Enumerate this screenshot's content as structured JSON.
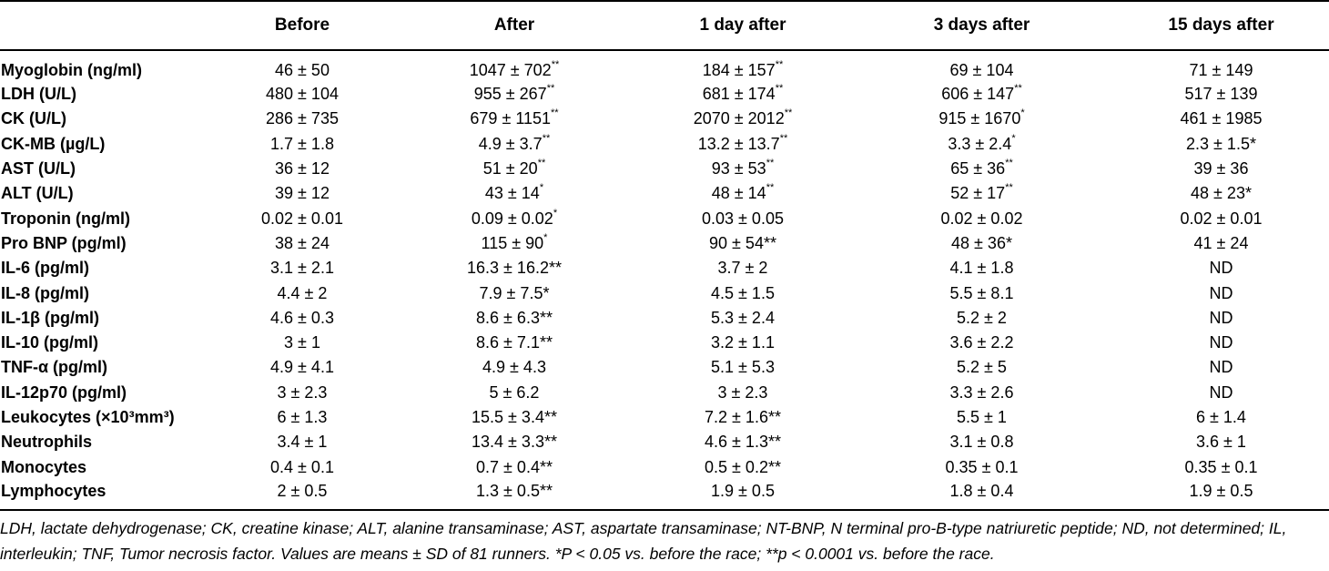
{
  "table": {
    "headers": [
      "",
      "Before",
      "After",
      "1 day after",
      "3 days after",
      "15 days after"
    ],
    "rows": [
      {
        "label": "Myoglobin (ng/ml)",
        "cells": [
          [
            "46 ± 50",
            ""
          ],
          [
            "1047 ± 702",
            "**"
          ],
          [
            "184 ± 157",
            "**"
          ],
          [
            "69 ± 104",
            ""
          ],
          [
            "71 ± 149",
            ""
          ]
        ]
      },
      {
        "label": "LDH (U/L)",
        "cells": [
          [
            "480 ± 104",
            ""
          ],
          [
            "955 ± 267",
            "**"
          ],
          [
            "681 ± 174",
            "**"
          ],
          [
            "606 ± 147",
            "**"
          ],
          [
            "517 ± 139",
            ""
          ]
        ]
      },
      {
        "label": "CK (U/L)",
        "cells": [
          [
            "286 ± 735",
            ""
          ],
          [
            "679 ± 1151",
            "**"
          ],
          [
            "2070 ± 2012",
            "**"
          ],
          [
            "915 ± 1670",
            "*"
          ],
          [
            "461 ± 1985",
            ""
          ]
        ]
      },
      {
        "label": "CK-MB (µg/L)",
        "cells": [
          [
            "1.7 ± 1.8",
            ""
          ],
          [
            "4.9 ± 3.7",
            "**"
          ],
          [
            "13.2 ± 13.7",
            "**"
          ],
          [
            "3.3 ± 2.4",
            "*"
          ],
          [
            "2.3 ± 1.5*",
            ""
          ]
        ]
      },
      {
        "label": "AST (U/L)",
        "cells": [
          [
            "36 ± 12",
            ""
          ],
          [
            "51 ± 20",
            "**"
          ],
          [
            "93 ± 53",
            "**"
          ],
          [
            "65 ± 36",
            "**"
          ],
          [
            "39 ± 36",
            ""
          ]
        ]
      },
      {
        "label": "ALT (U/L)",
        "cells": [
          [
            "39 ± 12",
            ""
          ],
          [
            "43 ± 14",
            "*"
          ],
          [
            "48 ± 14",
            "**"
          ],
          [
            "52 ± 17",
            "**"
          ],
          [
            "48 ± 23*",
            ""
          ]
        ]
      },
      {
        "label": "Troponin (ng/ml)",
        "cells": [
          [
            "0.02 ± 0.01",
            ""
          ],
          [
            "0.09 ± 0.02",
            "*"
          ],
          [
            "0.03 ± 0.05",
            ""
          ],
          [
            "0.02 ± 0.02",
            ""
          ],
          [
            "0.02 ± 0.01",
            ""
          ]
        ]
      },
      {
        "label": "Pro BNP (pg/ml)",
        "cells": [
          [
            "38 ± 24",
            ""
          ],
          [
            "115 ± 90",
            "*"
          ],
          [
            "90 ± 54**",
            ""
          ],
          [
            "48 ± 36*",
            ""
          ],
          [
            "41 ± 24",
            ""
          ]
        ]
      },
      {
        "label": "IL-6 (pg/ml)",
        "cells": [
          [
            "3.1 ± 2.1",
            ""
          ],
          [
            "16.3 ± 16.2**",
            ""
          ],
          [
            "3.7 ± 2",
            ""
          ],
          [
            "4.1 ± 1.8",
            ""
          ],
          [
            "ND",
            ""
          ]
        ]
      },
      {
        "label": "IL-8 (pg/ml)",
        "cells": [
          [
            "4.4 ± 2",
            ""
          ],
          [
            "7.9 ± 7.5*",
            ""
          ],
          [
            "4.5 ± 1.5",
            ""
          ],
          [
            "5.5 ± 8.1",
            ""
          ],
          [
            "ND",
            ""
          ]
        ]
      },
      {
        "label": "IL-1β (pg/ml)",
        "cells": [
          [
            "4.6 ± 0.3",
            ""
          ],
          [
            "8.6 ± 6.3**",
            ""
          ],
          [
            "5.3 ± 2.4",
            ""
          ],
          [
            "5.2 ± 2",
            ""
          ],
          [
            "ND",
            ""
          ]
        ]
      },
      {
        "label": "IL-10 (pg/ml)",
        "cells": [
          [
            "3 ± 1",
            ""
          ],
          [
            "8.6 ± 7.1**",
            ""
          ],
          [
            "3.2 ± 1.1",
            ""
          ],
          [
            "3.6 ± 2.2",
            ""
          ],
          [
            "ND",
            ""
          ]
        ]
      },
      {
        "label": "TNF-α (pg/ml)",
        "cells": [
          [
            "4.9 ± 4.1",
            ""
          ],
          [
            "4.9 ± 4.3",
            ""
          ],
          [
            "5.1 ± 5.3",
            ""
          ],
          [
            "5.2 ± 5",
            ""
          ],
          [
            "ND",
            ""
          ]
        ]
      },
      {
        "label": "IL-12p70 (pg/ml)",
        "cells": [
          [
            "3 ± 2.3",
            ""
          ],
          [
            "5 ± 6.2",
            ""
          ],
          [
            "3 ± 2.3",
            ""
          ],
          [
            "3.3 ± 2.6",
            ""
          ],
          [
            "ND",
            ""
          ]
        ]
      },
      {
        "label": "Leukocytes (×10³mm³)",
        "cells": [
          [
            "6 ± 1.3",
            ""
          ],
          [
            "15.5 ± 3.4**",
            ""
          ],
          [
            "7.2 ± 1.6**",
            ""
          ],
          [
            "5.5 ± 1",
            ""
          ],
          [
            "6 ± 1.4",
            ""
          ]
        ]
      },
      {
        "label": "Neutrophils",
        "cells": [
          [
            "3.4 ± 1",
            ""
          ],
          [
            "13.4 ± 3.3**",
            ""
          ],
          [
            "4.6 ± 1.3**",
            ""
          ],
          [
            "3.1 ± 0.8",
            ""
          ],
          [
            "3.6 ± 1",
            ""
          ]
        ]
      },
      {
        "label": "Monocytes",
        "cells": [
          [
            "0.4 ± 0.1",
            ""
          ],
          [
            "0.7 ± 0.4**",
            ""
          ],
          [
            "0.5 ± 0.2**",
            ""
          ],
          [
            "0.35 ± 0.1",
            ""
          ],
          [
            "0.35 ± 0.1",
            ""
          ]
        ]
      },
      {
        "label": "Lymphocytes",
        "cells": [
          [
            "2 ± 0.5",
            ""
          ],
          [
            "1.3 ± 0.5**",
            ""
          ],
          [
            "1.9 ± 0.5",
            ""
          ],
          [
            "1.8 ± 0.4",
            ""
          ],
          [
            "1.9 ± 0.5",
            ""
          ]
        ]
      }
    ]
  },
  "footnote": "LDH, lactate dehydrogenase; CK, creatine kinase; ALT, alanine transaminase; AST, aspartate transaminase; NT-BNP, N terminal pro-B-type natriuretic peptide; ND, not determined; IL, interleukin; TNF, Tumor necrosis factor. Values are means ± SD of 81 runners. *P < 0.05 vs. before the race; **p < 0.0001 vs. before the race."
}
